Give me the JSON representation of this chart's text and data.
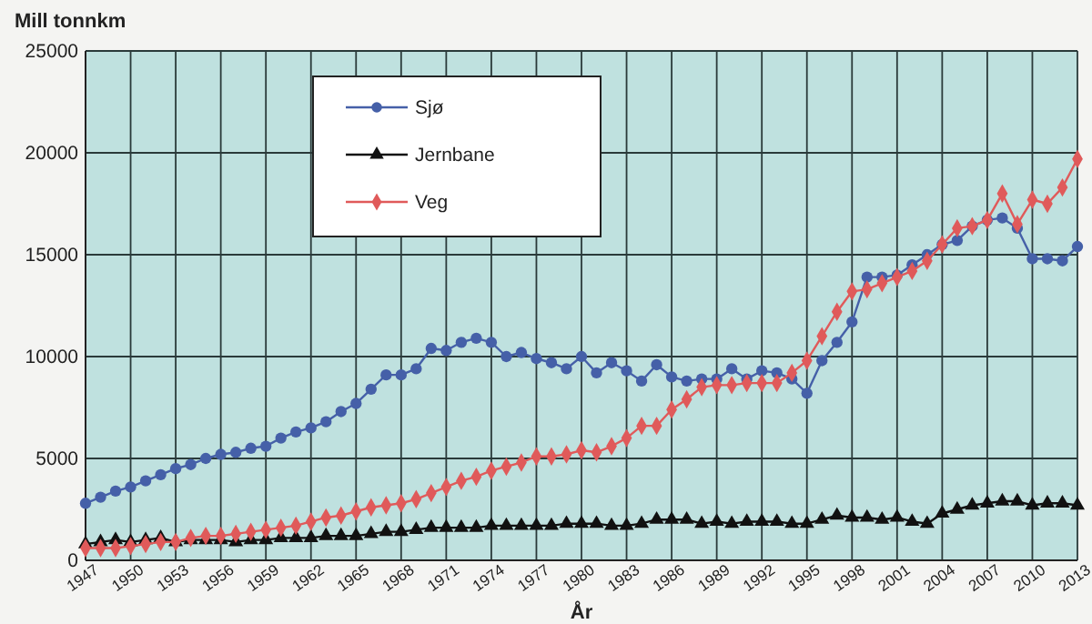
{
  "chart_data": {
    "type": "line",
    "ylabel": "Mill tonnkm",
    "xlabel": "År",
    "x": [
      1947,
      1948,
      1949,
      1950,
      1951,
      1952,
      1953,
      1954,
      1955,
      1956,
      1957,
      1958,
      1959,
      1960,
      1961,
      1962,
      1963,
      1964,
      1965,
      1966,
      1967,
      1968,
      1969,
      1970,
      1971,
      1972,
      1973,
      1974,
      1975,
      1976,
      1977,
      1978,
      1979,
      1980,
      1981,
      1982,
      1983,
      1984,
      1985,
      1986,
      1987,
      1988,
      1989,
      1990,
      1991,
      1992,
      1993,
      1994,
      1995,
      1996,
      1997,
      1998,
      1999,
      2000,
      2001,
      2002,
      2003,
      2004,
      2005,
      2006,
      2007,
      2008,
      2009,
      2010,
      2011,
      2012,
      2013
    ],
    "xlim": [
      1947,
      2013
    ],
    "xticks": [
      1947,
      1950,
      1953,
      1956,
      1959,
      1962,
      1965,
      1968,
      1971,
      1974,
      1977,
      1980,
      1983,
      1986,
      1989,
      1992,
      1995,
      1998,
      2001,
      2004,
      2007,
      2010,
      2013
    ],
    "ylim": [
      0,
      25000
    ],
    "yticks": [
      0,
      5000,
      10000,
      15000,
      20000,
      25000
    ],
    "grid": true,
    "legend": "top",
    "line_style": "solid",
    "series": [
      {
        "name": "Sjø",
        "color": "#4560a8",
        "marker": "circle",
        "values": [
          2800,
          3100,
          3400,
          3600,
          3900,
          4200,
          4500,
          4700,
          5000,
          5200,
          5300,
          5500,
          5600,
          6000,
          6300,
          6500,
          6800,
          7300,
          7700,
          8400,
          9100,
          9100,
          9400,
          10400,
          10300,
          10700,
          10900,
          10700,
          10000,
          10200,
          9900,
          9700,
          9400,
          10000,
          9200,
          9700,
          9300,
          8800,
          9600,
          9000,
          8800,
          8900,
          8900,
          9400,
          8900,
          9300,
          9200,
          8900,
          8200,
          9800,
          10700,
          11700,
          13900,
          13900,
          14000,
          14500,
          15000,
          15500,
          15700,
          16400,
          16700,
          16800,
          16300,
          14800,
          14800,
          14700,
          15400
        ]
      },
      {
        "name": "Jernbane",
        "color": "#111111",
        "marker": "triangle",
        "values": [
          800,
          900,
          1000,
          900,
          1000,
          1100,
          900,
          1000,
          1000,
          1000,
          900,
          1000,
          1000,
          1100,
          1100,
          1100,
          1200,
          1200,
          1200,
          1300,
          1400,
          1400,
          1500,
          1600,
          1600,
          1600,
          1600,
          1700,
          1700,
          1700,
          1700,
          1700,
          1800,
          1800,
          1800,
          1700,
          1700,
          1800,
          2000,
          2000,
          2000,
          1800,
          1900,
          1800,
          1900,
          1900,
          1900,
          1800,
          1800,
          2000,
          2200,
          2100,
          2100,
          2000,
          2100,
          1900,
          1800,
          2300,
          2500,
          2700,
          2800,
          2900,
          2900,
          2700,
          2800,
          2800,
          2700
        ]
      },
      {
        "name": "Veg",
        "color": "#e05a5a",
        "marker": "diamond",
        "values": [
          600,
          600,
          600,
          700,
          800,
          900,
          900,
          1100,
          1200,
          1200,
          1300,
          1400,
          1500,
          1600,
          1700,
          1900,
          2100,
          2200,
          2400,
          2600,
          2700,
          2800,
          3000,
          3300,
          3600,
          3900,
          4100,
          4400,
          4600,
          4800,
          5100,
          5100,
          5200,
          5400,
          5300,
          5600,
          6000,
          6600,
          6600,
          7400,
          7900,
          8500,
          8600,
          8600,
          8700,
          8700,
          8700,
          9200,
          9800,
          11000,
          12200,
          13200,
          13300,
          13600,
          13900,
          14200,
          14700,
          15500,
          16300,
          16400,
          16700,
          18000,
          16500,
          17700,
          17500,
          18300,
          19700
        ]
      }
    ]
  }
}
